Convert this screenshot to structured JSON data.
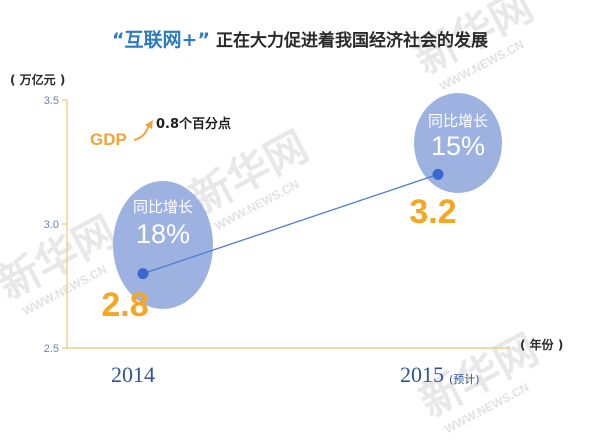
{
  "chart_data": {
    "type": "line",
    "title_quoted": "“互联网+”",
    "title_rest": "正在大力促进着我国经济社会的发展",
    "y_unit": "( 万亿元 )",
    "x_unit": "( 年份 )",
    "ylim": [
      2.5,
      3.5
    ],
    "y_ticks": [
      "2.5",
      "3.0",
      "3.5"
    ],
    "categories": [
      "2014",
      "2015"
    ],
    "category_notes": [
      "",
      "(预计)"
    ],
    "values": [
      2.8,
      3.2
    ],
    "value_labels": [
      "2.8",
      "3.2"
    ],
    "bubbles": [
      {
        "label": "同比增长",
        "pct": "18%"
      },
      {
        "label": "同比增长",
        "pct": "15%"
      }
    ],
    "annotation_gdp": "GDP",
    "annotation_text": "0.8个百分点",
    "colors": {
      "title_quoted": "#2a7bc4",
      "title_rest": "#2a2a2a",
      "axis": "#f0c47a",
      "line": "#4f7dd4",
      "point": "#3a68cf",
      "bubble": "#8fa7dd",
      "value_label": "#f5a623",
      "gdp": "#f0a43a"
    }
  },
  "watermarks": [
    {
      "text": "新华网",
      "sub": "WWW.NEWS.CN"
    },
    {
      "text": "新华网",
      "sub": "WWW.NEWS.CN"
    },
    {
      "text": "新华网",
      "sub": "WWW.NEWS.CN"
    },
    {
      "text": "新华网",
      "sub": "WWW.NEWS.CN"
    }
  ]
}
